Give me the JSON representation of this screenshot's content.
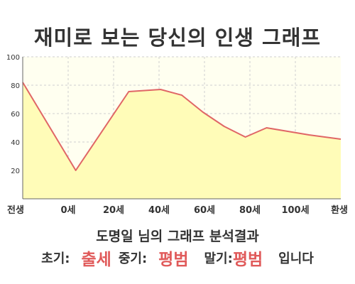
{
  "header": {
    "title": "재미로 보는 당신의 인생 그래프"
  },
  "chart_data": {
    "type": "area",
    "title": "재미로 보는 당신의 인생 그래프",
    "categories": [
      "전생",
      "0세",
      "20세",
      "40세",
      "60세",
      "80세",
      "100세",
      "환생"
    ],
    "x": [
      -25,
      0,
      25,
      40,
      50,
      60,
      70,
      80,
      90,
      100,
      110,
      125
    ],
    "values": [
      82,
      20,
      75.5,
      77,
      73,
      61,
      51,
      43.5,
      50,
      47.5,
      45,
      42
    ],
    "ylim": [
      0,
      100
    ],
    "yticks": [
      20,
      40,
      60,
      80,
      100
    ],
    "xlim": [
      -25,
      125
    ],
    "grid": true,
    "colors": {
      "line": "#e06666",
      "fill": "#fffcb8",
      "plot_bg": "#fffff0",
      "grid": "#cfcfcf"
    }
  },
  "summary": {
    "subtitle": "도명일 님의 그래프 분석결과",
    "early_label": "초기:",
    "early_value": "출세",
    "middle_label": "중기:",
    "middle_value": "평범",
    "late_label": "말기:",
    "late_value": "평범",
    "ending": "입니다"
  }
}
